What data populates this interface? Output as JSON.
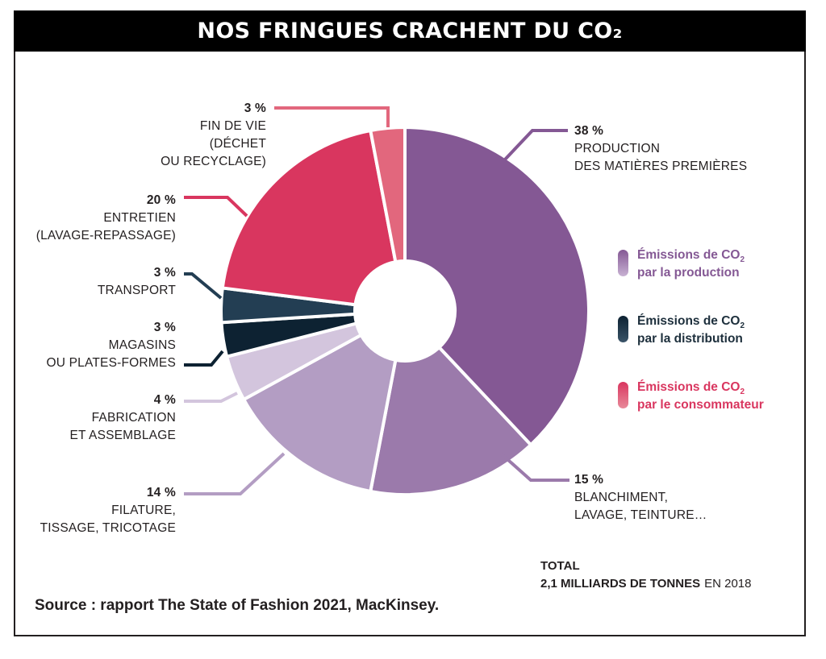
{
  "title": "NOS FRINGUES CRACHENT DU CO₂",
  "source": "Source : rapport The State of Fashion 2021, MacKinsey.",
  "total": {
    "label": "TOTAL",
    "value": "2,1 MILLIARDS DE TONNES",
    "suffix": "EN 2018"
  },
  "colors": {
    "production": "#845894",
    "distribution": "#203848",
    "consumer": "#d9365f"
  },
  "legend": [
    {
      "line1": "Émissions de CO",
      "sub": "2",
      "line2": "par la production",
      "color": "#845894",
      "dark": "#845894",
      "light": "#c8b2d3"
    },
    {
      "line1": "Émissions de CO",
      "sub": "2",
      "line2": "par la distribution",
      "color": "#1d2f3c",
      "dark": "#0d2232",
      "light": "#3a5468"
    },
    {
      "line1": "Émissions de CO",
      "sub": "2",
      "line2": "par le consommateur",
      "color": "#d9365f",
      "dark": "#d9365f",
      "light": "#e88a9a"
    }
  ],
  "chart_data": {
    "type": "pie",
    "donut": true,
    "title": "NOS FRINGUES CRACHENT DU CO₂",
    "slices": [
      {
        "label": [
          "PRODUCTION",
          "DES MATIÈRES PREMIÈRES"
        ],
        "value": 38,
        "display": "38 %",
        "color": "#845894"
      },
      {
        "label": [
          "BLANCHIMENT,",
          "LAVAGE, TEINTURE…"
        ],
        "value": 15,
        "display": "15 %",
        "color": "#9b7aab"
      },
      {
        "label": [
          "FILATURE,",
          "TISSAGE, TRICOTAGE"
        ],
        "value": 14,
        "display": "14 %",
        "color": "#b39dc3"
      },
      {
        "label": [
          "FABRICATION",
          "ET ASSEMBLAGE"
        ],
        "value": 4,
        "display": "4 %",
        "color": "#d3c5dd"
      },
      {
        "label": [
          "MAGASINS",
          "OU PLATES-FORMES"
        ],
        "value": 3,
        "display": "3 %",
        "color": "#0d2232"
      },
      {
        "label": [
          "TRANSPORT"
        ],
        "value": 3,
        "display": "3 %",
        "color": "#233e53"
      },
      {
        "label": [
          "ENTRETIEN",
          "(LAVAGE-REPASSAGE)"
        ],
        "value": 20,
        "display": "20 %",
        "color": "#d9365f"
      },
      {
        "label": [
          "FIN DE VIE",
          "(DÉCHET",
          "OU RECYCLAGE)"
        ],
        "value": 3,
        "display": "3 %",
        "color": "#e2677d"
      }
    ]
  }
}
